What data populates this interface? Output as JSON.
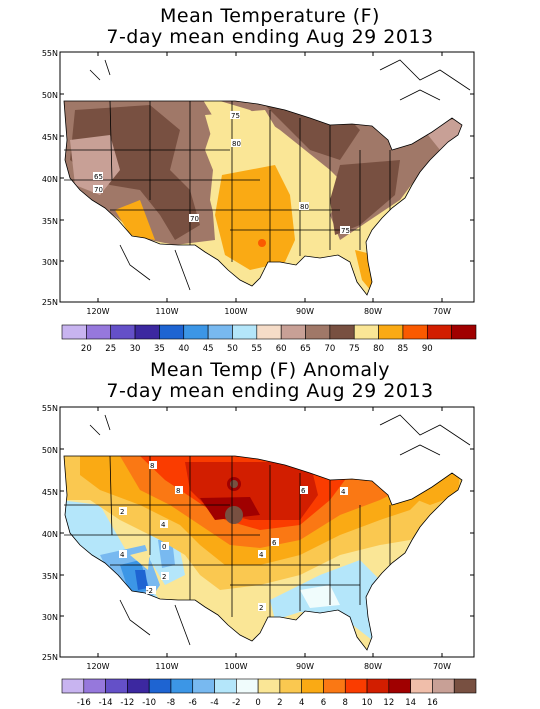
{
  "panel1": {
    "title_line1": "Mean Temperature (F)",
    "title_line2": "7-day mean ending Aug 29 2013",
    "lat_labels": [
      "55N",
      "50N",
      "45N",
      "40N",
      "35N",
      "30N",
      "25N"
    ],
    "lon_labels": [
      "120W",
      "110W",
      "100W",
      "90W",
      "80W",
      "70W"
    ],
    "contour_labels": [
      "75",
      "80",
      "65",
      "70",
      "70",
      "80",
      "75"
    ],
    "colorbar": {
      "labels": [
        "20",
        "25",
        "30",
        "35",
        "40",
        "45",
        "50",
        "55",
        "60",
        "65",
        "70",
        "75",
        "80",
        "85",
        "90"
      ],
      "colors": [
        "#c8b4f0",
        "#9678dc",
        "#6450c8",
        "#3c28a0",
        "#1e64d2",
        "#3c96e6",
        "#78b9f0",
        "#b4e6fa",
        "#f5dcc8",
        "#c8a096",
        "#a07868",
        "#785041",
        "#fae696",
        "#faaa14",
        "#fa5a00",
        "#d21e00",
        "#a00000"
      ]
    }
  },
  "panel2": {
    "title_line1": "Mean Temp (F) Anomaly",
    "title_line2": "7-day mean ending Aug 29 2013",
    "lat_labels": [
      "55N",
      "50N",
      "45N",
      "40N",
      "35N",
      "30N",
      "25N"
    ],
    "lon_labels": [
      "120W",
      "110W",
      "100W",
      "90W",
      "80W",
      "70W"
    ],
    "contour_labels": [
      "8",
      "8",
      "4",
      "2",
      "4",
      "6",
      "4",
      "4",
      "6",
      "2",
      "-2",
      "2",
      "0"
    ],
    "colorbar": {
      "labels": [
        "-16",
        "-14",
        "-12",
        "-10",
        "-8",
        "-6",
        "-4",
        "-2",
        "0",
        "2",
        "4",
        "6",
        "8",
        "10",
        "12",
        "14",
        "16"
      ],
      "colors": [
        "#c8b4f0",
        "#9678dc",
        "#6450c8",
        "#3c28a0",
        "#1e64d2",
        "#3c96e6",
        "#78b9f0",
        "#b4e6fa",
        "#f0fcfc",
        "#fae696",
        "#fac850",
        "#faaa14",
        "#fa7814",
        "#fa3c00",
        "#d21e00",
        "#a00000",
        "#f0beaa",
        "#c8a096",
        "#785041"
      ]
    }
  }
}
